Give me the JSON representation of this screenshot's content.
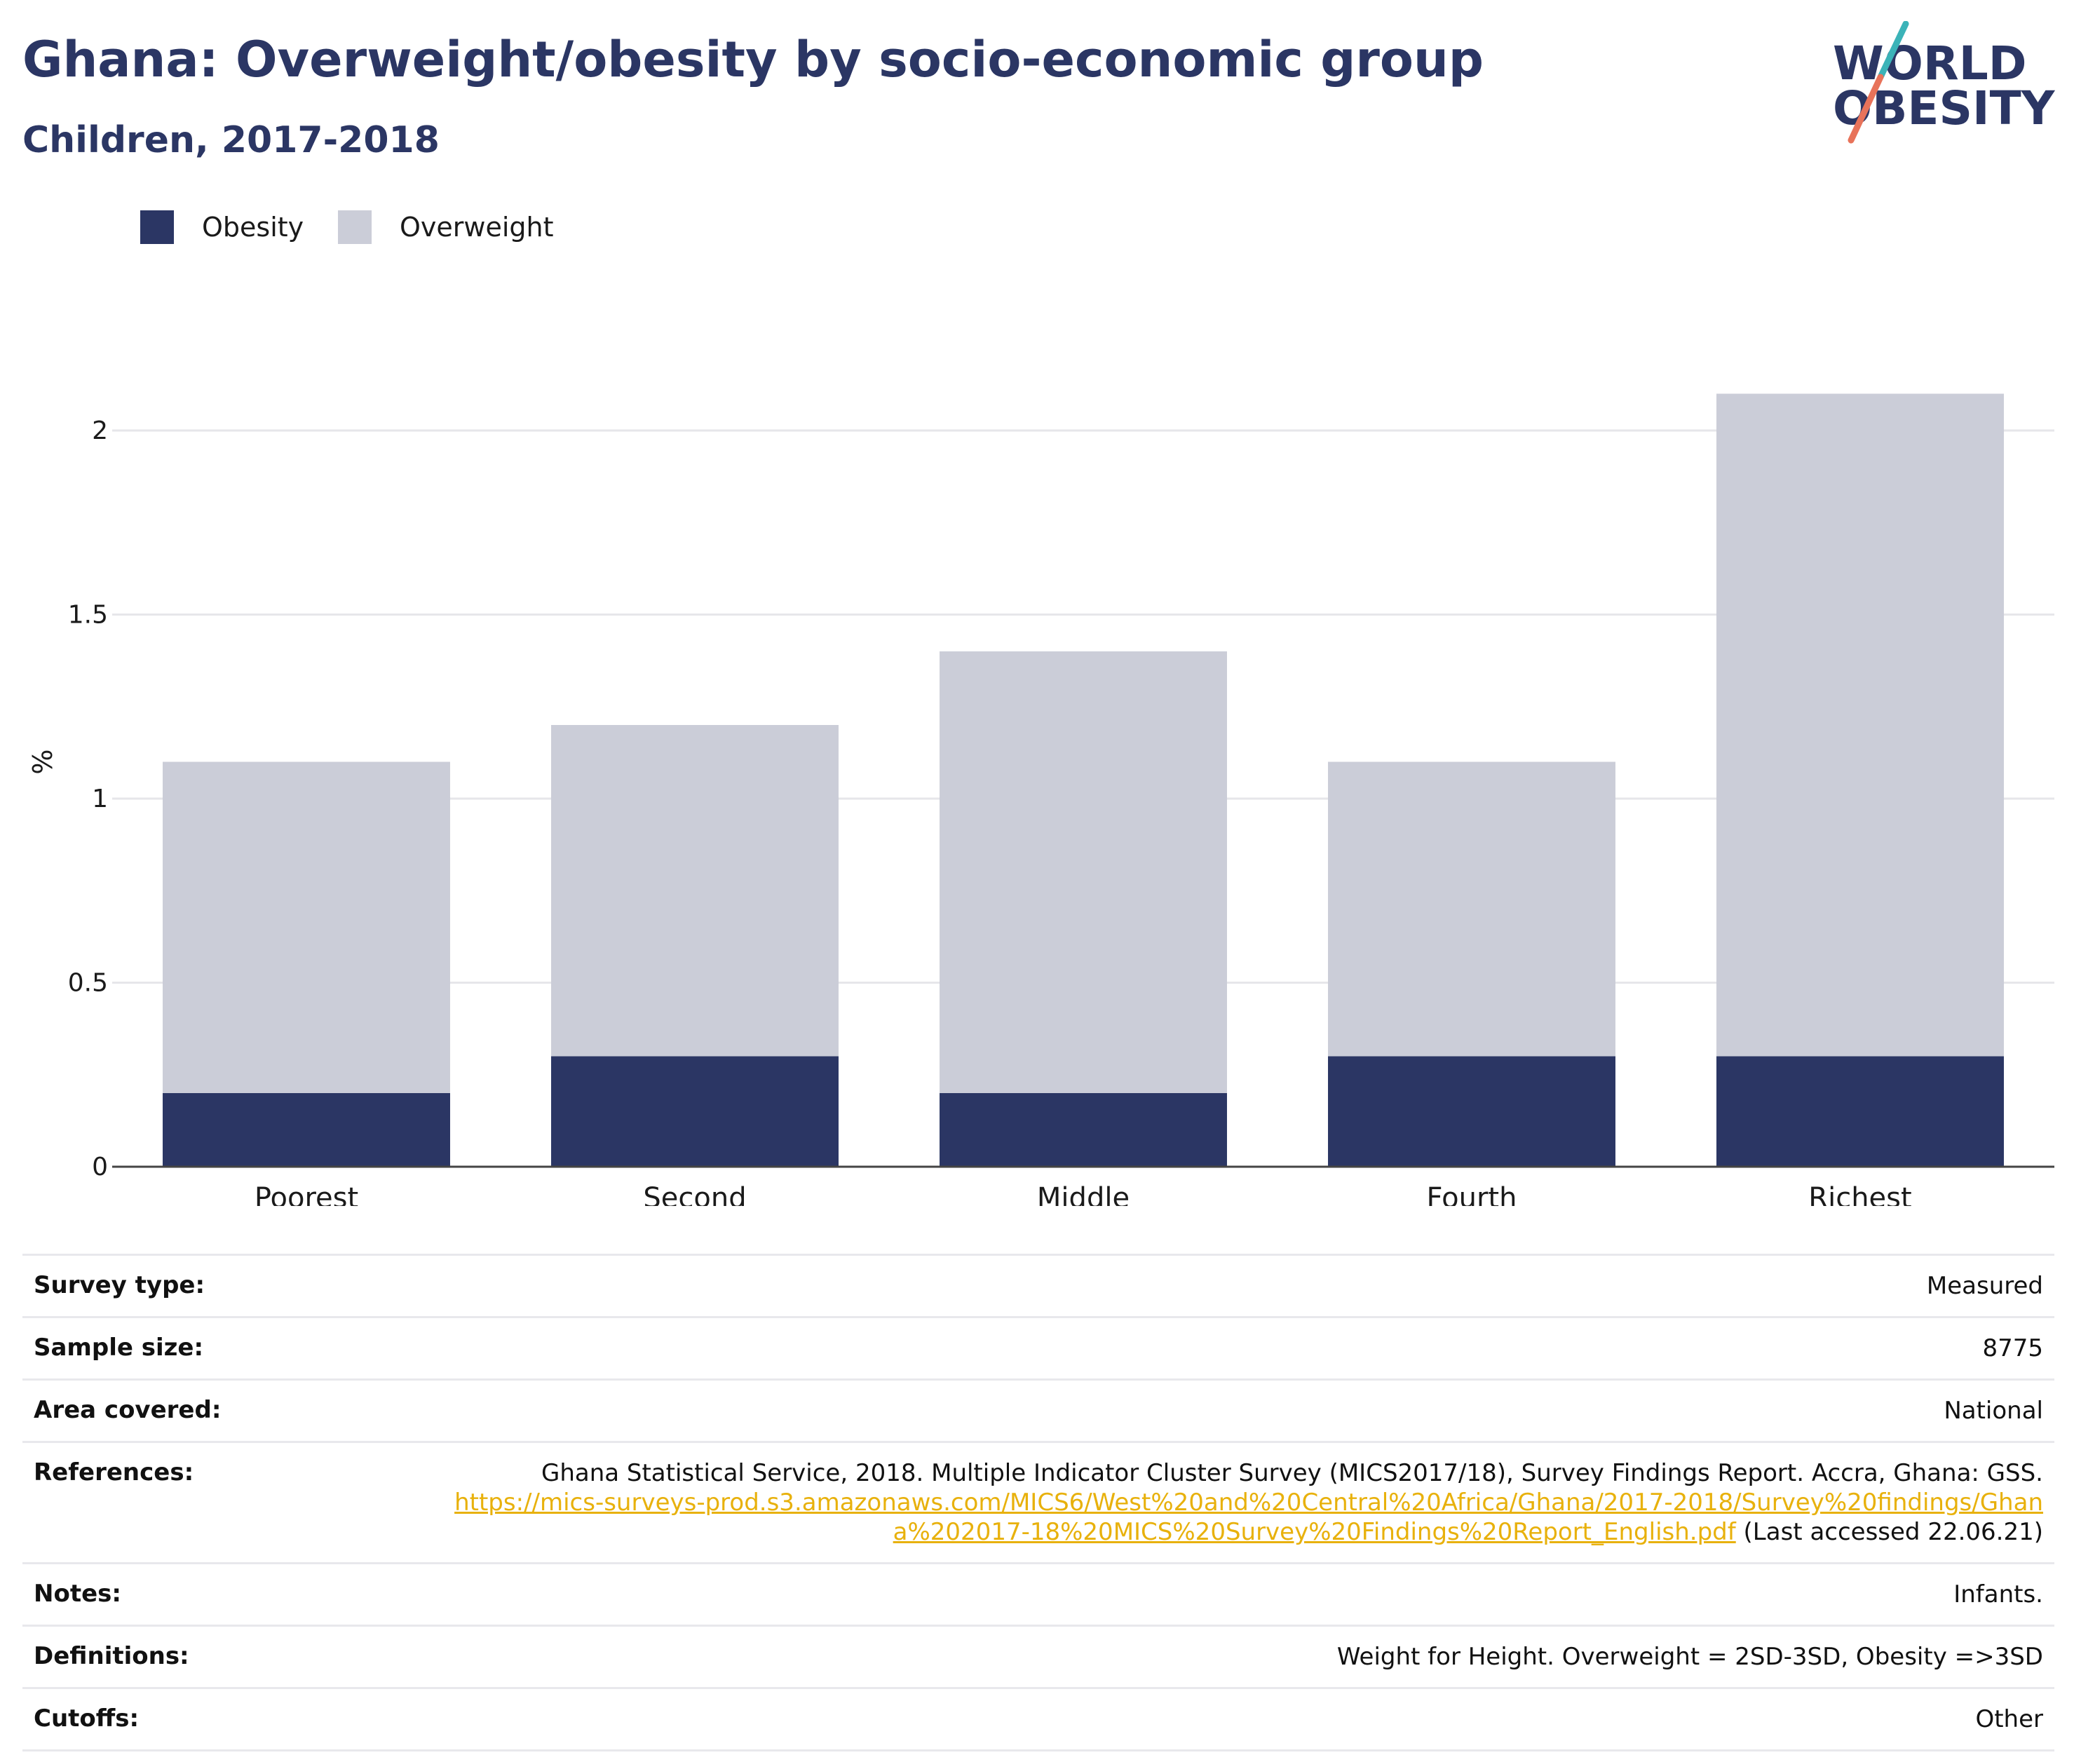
{
  "header": {
    "title": "Ghana: Overweight/obesity by socio-economic group",
    "subtitle": "Children, 2017-2018"
  },
  "logo": {
    "line1": "WORLD",
    "line2": "OBESITY",
    "colors": {
      "text": "#2b3664",
      "slash_top": "#3bb3b8",
      "slash_bottom": "#e8735a"
    }
  },
  "legend": {
    "items": [
      {
        "label": "Obesity",
        "color": "#2b3664"
      },
      {
        "label": "Overweight",
        "color": "#cbcdd8"
      }
    ]
  },
  "chart_data": {
    "type": "bar",
    "stacked": true,
    "categories": [
      "Poorest",
      "Second",
      "Middle",
      "Fourth",
      "Richest"
    ],
    "series": [
      {
        "name": "Obesity",
        "color": "#2b3664",
        "values": [
          0.2,
          0.3,
          0.2,
          0.3,
          0.3
        ]
      },
      {
        "name": "Overweight",
        "color": "#cbcdd8",
        "values": [
          0.9,
          0.9,
          1.2,
          0.8,
          1.8
        ]
      }
    ],
    "title": "Ghana: Overweight/obesity by socio-economic group",
    "subtitle": "Children, 2017-2018",
    "xlabel": "",
    "ylabel": "%",
    "ylim": [
      0,
      2.2
    ],
    "yticks": [
      0,
      0.5,
      1,
      1.5,
      2
    ],
    "ytick_labels": [
      "0",
      "0.5",
      "1",
      "1.5",
      "2"
    ],
    "grid": true,
    "legend_position": "top-left"
  },
  "info": {
    "rows": [
      {
        "label": "Survey type:",
        "value": "Measured"
      },
      {
        "label": "Sample size:",
        "value": "8775"
      },
      {
        "label": "Area covered:",
        "value": "National"
      },
      {
        "label": "References:",
        "value": "Ghana Statistical Service, 2018. Multiple Indicator Cluster Survey (MICS2017/18), Survey Findings Report. Accra, Ghana: GSS."
      },
      {
        "label": "Notes:",
        "value": "Infants."
      },
      {
        "label": "Definitions:",
        "value": "Weight for Height. Overweight = 2SD-3SD, Obesity =>3SD"
      },
      {
        "label": "Cutoffs:",
        "value": "Other"
      }
    ],
    "reference_link": "https://mics-surveys-prod.s3.amazonaws.com/MICS6/West%20and%20Central%20Africa/Ghana/2017-2018/Survey%20findings/Ghana%202017-18%20MICS%20Survey%20Findings%20Report_English.pdf",
    "reference_suffix": "(Last accessed 22.06.21)"
  }
}
